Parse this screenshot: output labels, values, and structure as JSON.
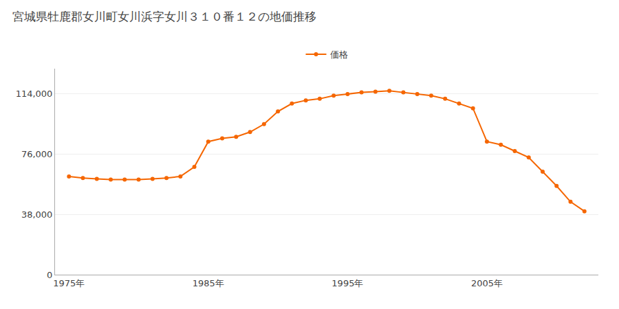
{
  "chart_data": {
    "type": "line",
    "title": "宮城県牡鹿郡女川町女川浜字女川３１０番１２の地価推移",
    "x": [
      1975,
      1976,
      1977,
      1978,
      1979,
      1980,
      1981,
      1982,
      1983,
      1984,
      1985,
      1986,
      1987,
      1988,
      1989,
      1990,
      1991,
      1992,
      1993,
      1994,
      1995,
      1996,
      1997,
      1998,
      1999,
      2000,
      2001,
      2002,
      2003,
      2004,
      2005,
      2006,
      2007,
      2008,
      2009,
      2010,
      2011,
      2012
    ],
    "series": [
      {
        "name": "価格",
        "color": "#f56600",
        "marker": "circle",
        "values": [
          62000,
          61000,
          60500,
          60000,
          60000,
          60000,
          60500,
          61000,
          62000,
          68000,
          84000,
          86000,
          87000,
          90000,
          95000,
          103000,
          108000,
          110000,
          111000,
          113000,
          114000,
          115000,
          115500,
          116000,
          115000,
          114000,
          113000,
          111000,
          108000,
          105000,
          84000,
          82000,
          78000,
          74000,
          65000,
          56000,
          46000,
          40000
        ]
      }
    ],
    "xlim": [
      1974,
      2013
    ],
    "xticks": [
      {
        "value": 1975,
        "label": "1975年"
      },
      {
        "value": 1985,
        "label": "1985年"
      },
      {
        "value": 1995,
        "label": "1995年"
      },
      {
        "value": 2005,
        "label": "2005年"
      }
    ],
    "ylim": [
      0,
      130000
    ],
    "yticks": [
      0,
      {
        "value": 38000,
        "label": "38,000"
      },
      {
        "value": 76000,
        "label": "76,000"
      },
      {
        "value": 114000,
        "label": "114,000"
      }
    ],
    "grid": true,
    "legend": "top"
  }
}
